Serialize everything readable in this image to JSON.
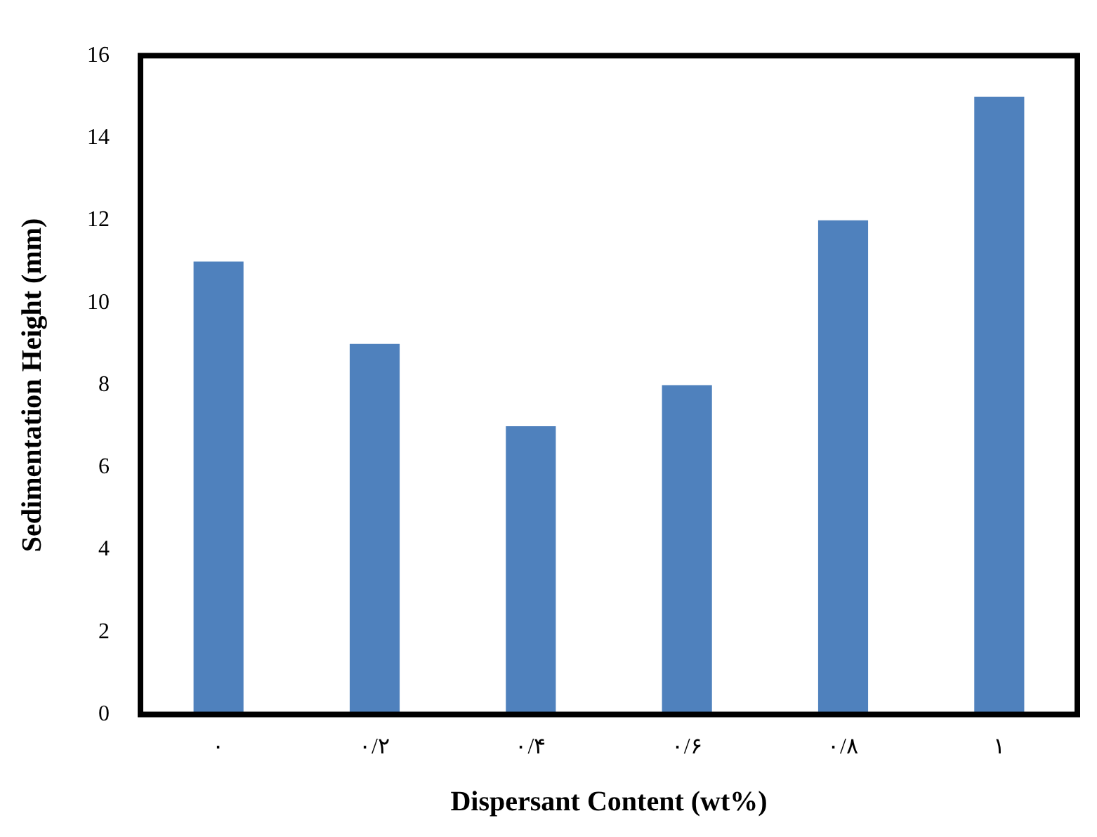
{
  "chart_data": {
    "type": "bar",
    "xlabel": "Dispersant Content (wt%)",
    "ylabel": "Sedimentation Height (mm)",
    "categories": [
      "۰",
      "۰/۲",
      "۰/۴",
      "۰/۶",
      "۰/۸",
      "۱"
    ],
    "values": [
      11,
      9,
      7,
      8,
      12,
      15
    ],
    "color": "#4f81bd",
    "ylim": [
      0,
      16
    ],
    "yticks": [
      0,
      2,
      4,
      6,
      8,
      10,
      12,
      14,
      16
    ],
    "grid": false,
    "legend": false
  }
}
